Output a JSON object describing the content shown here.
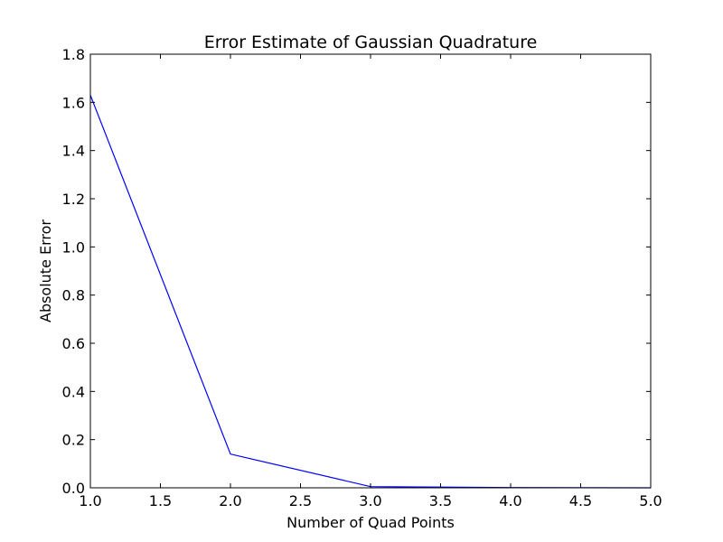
{
  "chart_data": {
    "type": "line",
    "title": "Error Estimate of Gaussian Quadrature",
    "xlabel": "Number of Quad Points",
    "ylabel": "Absolute Error",
    "xlim": [
      1.0,
      5.0
    ],
    "ylim": [
      0.0,
      1.8
    ],
    "x_ticks": [
      "1.0",
      "1.5",
      "2.0",
      "2.5",
      "3.0",
      "3.5",
      "4.0",
      "4.5",
      "5.0"
    ],
    "y_ticks": [
      "0.0",
      "0.2",
      "0.4",
      "0.6",
      "0.8",
      "1.0",
      "1.2",
      "1.4",
      "1.6",
      "1.8"
    ],
    "grid": false,
    "series": [
      {
        "color": "#0000ff",
        "x": [
          1,
          2,
          3,
          4,
          5
        ],
        "y": [
          1.63,
          0.14,
          0.005,
          0.001,
          0.0
        ]
      }
    ]
  }
}
